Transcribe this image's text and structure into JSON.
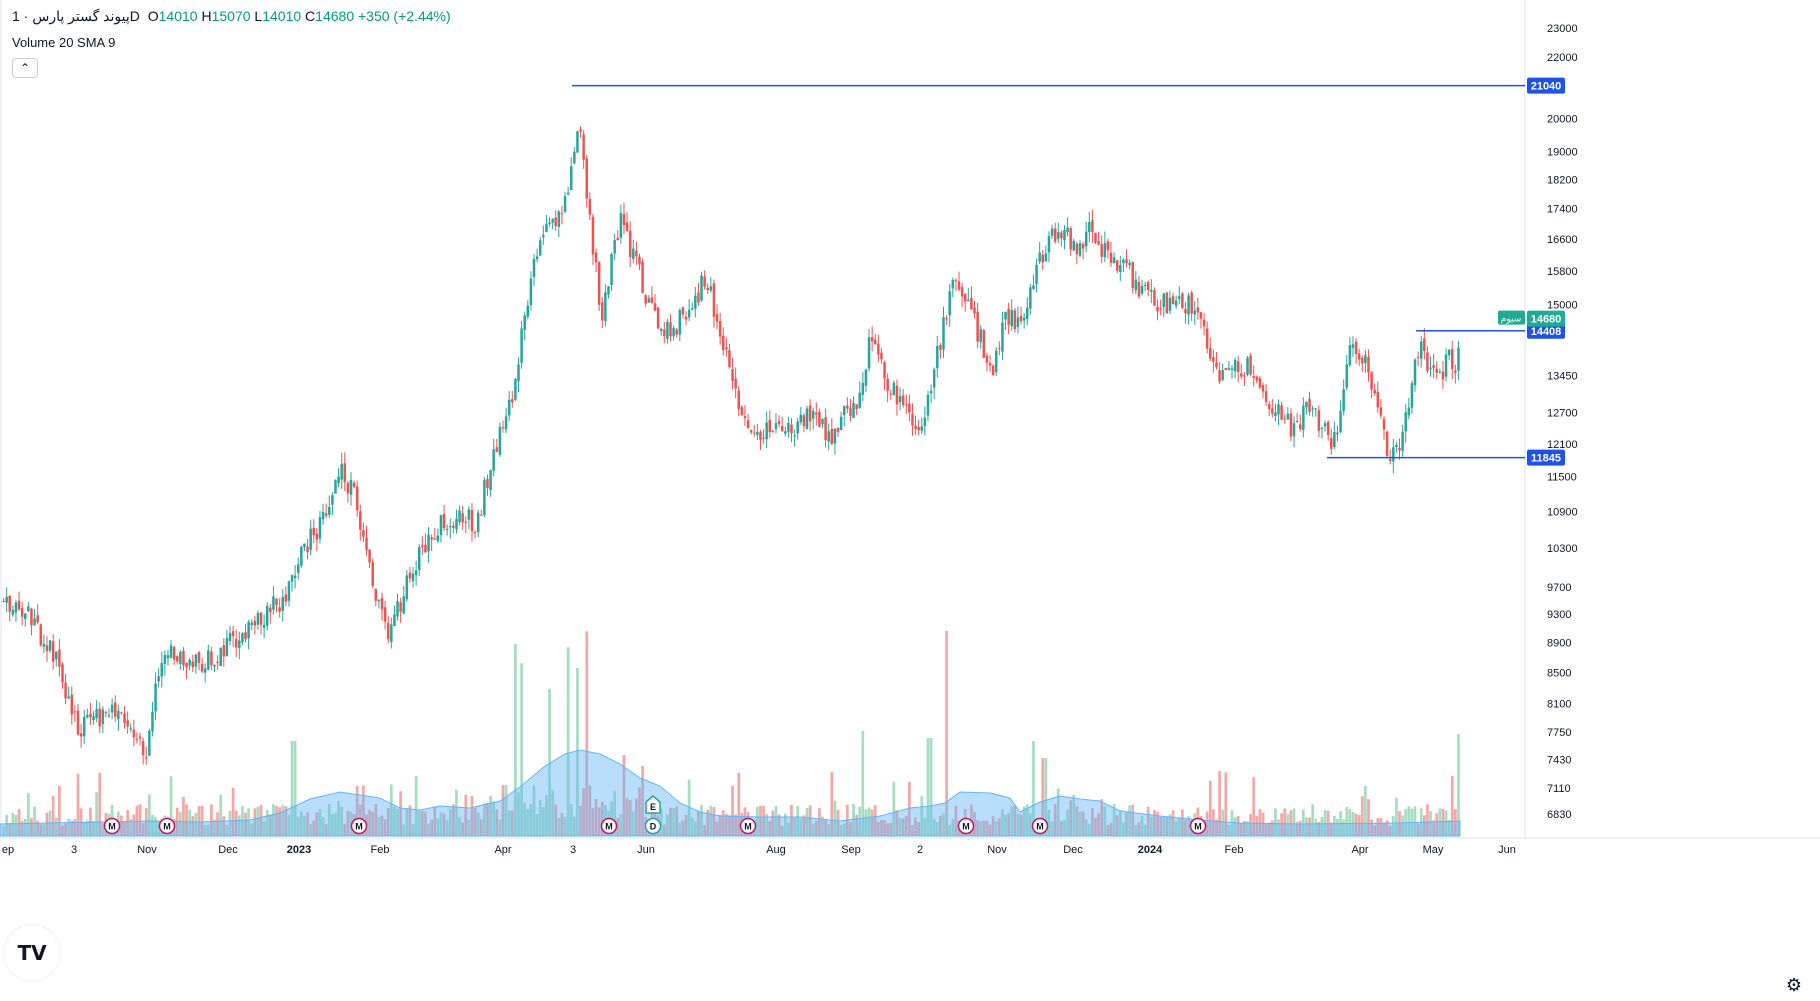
{
  "legend": {
    "symbol_line": "پیوند گستر پارس · 1D",
    "open_label": "O",
    "open": "14010",
    "high_label": "H",
    "high": "15070",
    "low_label": "L",
    "low": "14010",
    "close_label": "C",
    "close": "14680",
    "change": "+350 (+2.44%)"
  },
  "volume_legend": "Volume 20 SMA 9",
  "collapse_icon": "chevron-up-icon",
  "settings_icon": "gear-icon",
  "logo_text": "TV",
  "colors": {
    "up": "#26a69a",
    "down": "#ef5350",
    "level": "#1e53e5",
    "last": "#22ab94",
    "vol_up": "#a6dcc2",
    "vol_down": "#f5a7a6",
    "vol_ma": "#64b5f6"
  },
  "chart_data": {
    "type": "candlestick",
    "interval": "1D",
    "y_scale": "log",
    "ylim": [
      6600,
      23300
    ],
    "y_ticks": [
      23000,
      22000,
      21040,
      20000,
      19000,
      18200,
      17400,
      16600,
      15800,
      15000,
      14680,
      14408,
      13450,
      12700,
      12100,
      11845,
      11500,
      10900,
      10300,
      9700,
      9300,
      8900,
      8500,
      8100,
      7750,
      7430,
      7110,
      6830
    ],
    "x_tick_labels": [
      "ep",
      "3",
      "Nov",
      "Dec",
      "2023",
      "Feb",
      "Apr",
      "3",
      "Jun",
      "Aug",
      "Sep",
      "2",
      "Nov",
      "Dec",
      "2024",
      "Feb",
      "Apr",
      "May",
      "Jun"
    ],
    "bold_ticks": [
      "2023",
      "2024"
    ],
    "price_path": [
      [
        0,
        9500
      ],
      [
        25,
        9400
      ],
      [
        40,
        9000
      ],
      [
        55,
        8700
      ],
      [
        65,
        8100
      ],
      [
        78,
        7800
      ],
      [
        110,
        8000
      ],
      [
        128,
        7750
      ],
      [
        145,
        7500
      ],
      [
        152,
        8100
      ],
      [
        165,
        8900
      ],
      [
        185,
        8600
      ],
      [
        210,
        8700
      ],
      [
        240,
        9000
      ],
      [
        265,
        9300
      ],
      [
        285,
        9600
      ],
      [
        300,
        10200
      ],
      [
        315,
        10600
      ],
      [
        328,
        11000
      ],
      [
        340,
        11600
      ],
      [
        352,
        11200
      ],
      [
        362,
        10400
      ],
      [
        375,
        9600
      ],
      [
        388,
        9000
      ],
      [
        400,
        9500
      ],
      [
        420,
        10300
      ],
      [
        440,
        10700
      ],
      [
        462,
        10900
      ],
      [
        475,
        10600
      ],
      [
        482,
        11200
      ],
      [
        495,
        12100
      ],
      [
        510,
        13000
      ],
      [
        518,
        14000
      ],
      [
        530,
        15600
      ],
      [
        540,
        16500
      ],
      [
        552,
        17100
      ],
      [
        566,
        17700
      ],
      [
        572,
        19000
      ],
      [
        577,
        20100
      ],
      [
        585,
        17600
      ],
      [
        595,
        15700
      ],
      [
        600,
        14800
      ],
      [
        610,
        16000
      ],
      [
        620,
        17200
      ],
      [
        630,
        16200
      ],
      [
        640,
        15600
      ],
      [
        648,
        14900
      ],
      [
        660,
        14300
      ],
      [
        672,
        14500
      ],
      [
        690,
        14900
      ],
      [
        705,
        15700
      ],
      [
        712,
        14900
      ],
      [
        722,
        14200
      ],
      [
        732,
        13100
      ],
      [
        742,
        12500
      ],
      [
        755,
        12300
      ],
      [
        770,
        12400
      ],
      [
        790,
        12300
      ],
      [
        810,
        12700
      ],
      [
        830,
        12200
      ],
      [
        845,
        12700
      ],
      [
        858,
        13000
      ],
      [
        868,
        14200
      ],
      [
        878,
        13700
      ],
      [
        890,
        13200
      ],
      [
        905,
        12800
      ],
      [
        918,
        12400
      ],
      [
        930,
        13300
      ],
      [
        940,
        14300
      ],
      [
        950,
        15500
      ],
      [
        958,
        15300
      ],
      [
        968,
        14800
      ],
      [
        978,
        14300
      ],
      [
        990,
        13500
      ],
      [
        1000,
        14400
      ],
      [
        1008,
        14800
      ],
      [
        1020,
        14500
      ],
      [
        1032,
        15500
      ],
      [
        1040,
        16200
      ],
      [
        1050,
        16600
      ],
      [
        1060,
        16800
      ],
      [
        1075,
        16500
      ],
      [
        1090,
        16800
      ],
      [
        1100,
        16400
      ],
      [
        1115,
        16000
      ],
      [
        1125,
        15900
      ],
      [
        1135,
        15500
      ],
      [
        1150,
        15100
      ],
      [
        1165,
        15000
      ],
      [
        1180,
        15100
      ],
      [
        1195,
        14800
      ],
      [
        1205,
        14200
      ],
      [
        1215,
        13500
      ],
      [
        1235,
        13700
      ],
      [
        1255,
        13500
      ],
      [
        1270,
        12800
      ],
      [
        1290,
        12400
      ],
      [
        1305,
        12700
      ],
      [
        1320,
        12500
      ],
      [
        1330,
        12100
      ],
      [
        1340,
        12700
      ],
      [
        1348,
        14000
      ],
      [
        1360,
        13900
      ],
      [
        1370,
        13300
      ],
      [
        1378,
        12700
      ],
      [
        1385,
        12000
      ],
      [
        1395,
        11900
      ],
      [
        1402,
        12400
      ],
      [
        1410,
        13200
      ],
      [
        1418,
        14100
      ],
      [
        1425,
        13600
      ],
      [
        1435,
        13300
      ],
      [
        1448,
        13800
      ],
      [
        1455,
        13400
      ],
      [
        1460,
        14680
      ]
    ],
    "volume_bars": {
      "count": 470,
      "x_start": 2,
      "x_end": 1460,
      "base_y": 836
    },
    "volume_ma_path": [
      [
        0,
        12
      ],
      [
        100,
        14
      ],
      [
        150,
        15
      ],
      [
        200,
        14
      ],
      [
        250,
        16
      ],
      [
        280,
        23
      ],
      [
        310,
        37
      ],
      [
        340,
        44
      ],
      [
        380,
        38
      ],
      [
        400,
        28
      ],
      [
        420,
        26
      ],
      [
        440,
        30
      ],
      [
        470,
        28
      ],
      [
        500,
        35
      ],
      [
        520,
        49
      ],
      [
        545,
        70
      ],
      [
        565,
        82
      ],
      [
        580,
        86
      ],
      [
        600,
        82
      ],
      [
        620,
        72
      ],
      [
        640,
        58
      ],
      [
        660,
        50
      ],
      [
        680,
        33
      ],
      [
        700,
        24
      ],
      [
        720,
        20
      ],
      [
        760,
        19
      ],
      [
        800,
        19
      ],
      [
        840,
        15
      ],
      [
        880,
        20
      ],
      [
        910,
        28
      ],
      [
        930,
        30
      ],
      [
        945,
        33
      ],
      [
        960,
        44
      ],
      [
        990,
        43
      ],
      [
        1010,
        38
      ],
      [
        1020,
        24
      ],
      [
        1040,
        34
      ],
      [
        1060,
        40
      ],
      [
        1080,
        37
      ],
      [
        1100,
        35
      ],
      [
        1120,
        25
      ],
      [
        1160,
        20
      ],
      [
        1200,
        16
      ],
      [
        1240,
        13
      ],
      [
        1300,
        12
      ],
      [
        1400,
        13
      ],
      [
        1460,
        15
      ]
    ],
    "horizontal_levels": [
      {
        "price": 21040,
        "label": "21040",
        "x_start": 572
      },
      {
        "price": 14408,
        "label": "14408",
        "x_start": 1416
      },
      {
        "price": 11845,
        "label": "11845",
        "x_start": 1327
      }
    ],
    "last_price": {
      "value": 14680,
      "label": "14680",
      "tag": "سیوم"
    },
    "event_markers": [
      {
        "glyph": "M",
        "x": 112,
        "row": "bottom"
      },
      {
        "glyph": "M",
        "x": 167,
        "row": "bottom"
      },
      {
        "glyph": "M",
        "x": 359,
        "row": "bottom"
      },
      {
        "glyph": "M",
        "x": 609,
        "row": "bottom"
      },
      {
        "glyph": "D",
        "x": 653,
        "row": "bottom"
      },
      {
        "glyph": "E",
        "x": 653,
        "row": "top"
      },
      {
        "glyph": "M",
        "x": 748,
        "row": "bottom"
      },
      {
        "glyph": "M",
        "x": 966,
        "row": "bottom"
      },
      {
        "glyph": "M",
        "x": 1040,
        "row": "bottom"
      },
      {
        "glyph": "M",
        "x": 1198,
        "row": "bottom"
      }
    ]
  }
}
